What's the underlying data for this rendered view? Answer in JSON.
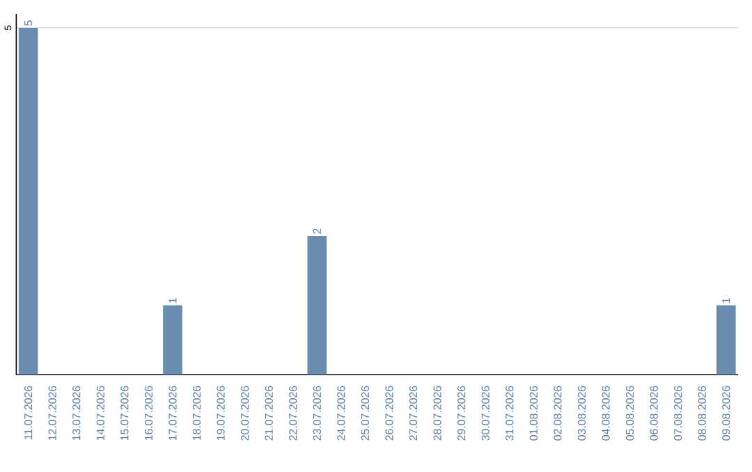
{
  "chart_data": {
    "type": "bar",
    "categories": [
      "11.07.2026",
      "12.07.2026",
      "13.07.2026",
      "14.07.2026",
      "15.07.2026",
      "16.07.2026",
      "17.07.2026",
      "18.07.2026",
      "19.07.2026",
      "20.07.2026",
      "21.07.2026",
      "22.07.2026",
      "23.07.2026",
      "24.07.2026",
      "25.07.2026",
      "26.07.2026",
      "27.07.2026",
      "28.07.2026",
      "29.07.2026",
      "30.07.2026",
      "31.07.2026",
      "01.08.2026",
      "02.08.2026",
      "03.08.2026",
      "04.08.2026",
      "05.08.2026",
      "06.08.2026",
      "07.08.2026",
      "08.08.2026",
      "09.08.2026"
    ],
    "values": [
      5,
      0,
      0,
      0,
      0,
      0,
      1,
      0,
      0,
      0,
      0,
      0,
      2,
      0,
      0,
      0,
      0,
      0,
      0,
      0,
      0,
      0,
      0,
      0,
      0,
      0,
      0,
      0,
      0,
      1
    ],
    "value_labels": [
      "5",
      null,
      null,
      null,
      null,
      null,
      "1",
      null,
      null,
      null,
      null,
      null,
      "2",
      null,
      null,
      null,
      null,
      null,
      null,
      null,
      null,
      null,
      null,
      null,
      null,
      null,
      null,
      null,
      null,
      "1"
    ],
    "color": "#6a8caf",
    "ylim": [
      0,
      5.2
    ],
    "yticks": [
      5
    ],
    "grid": "y"
  }
}
